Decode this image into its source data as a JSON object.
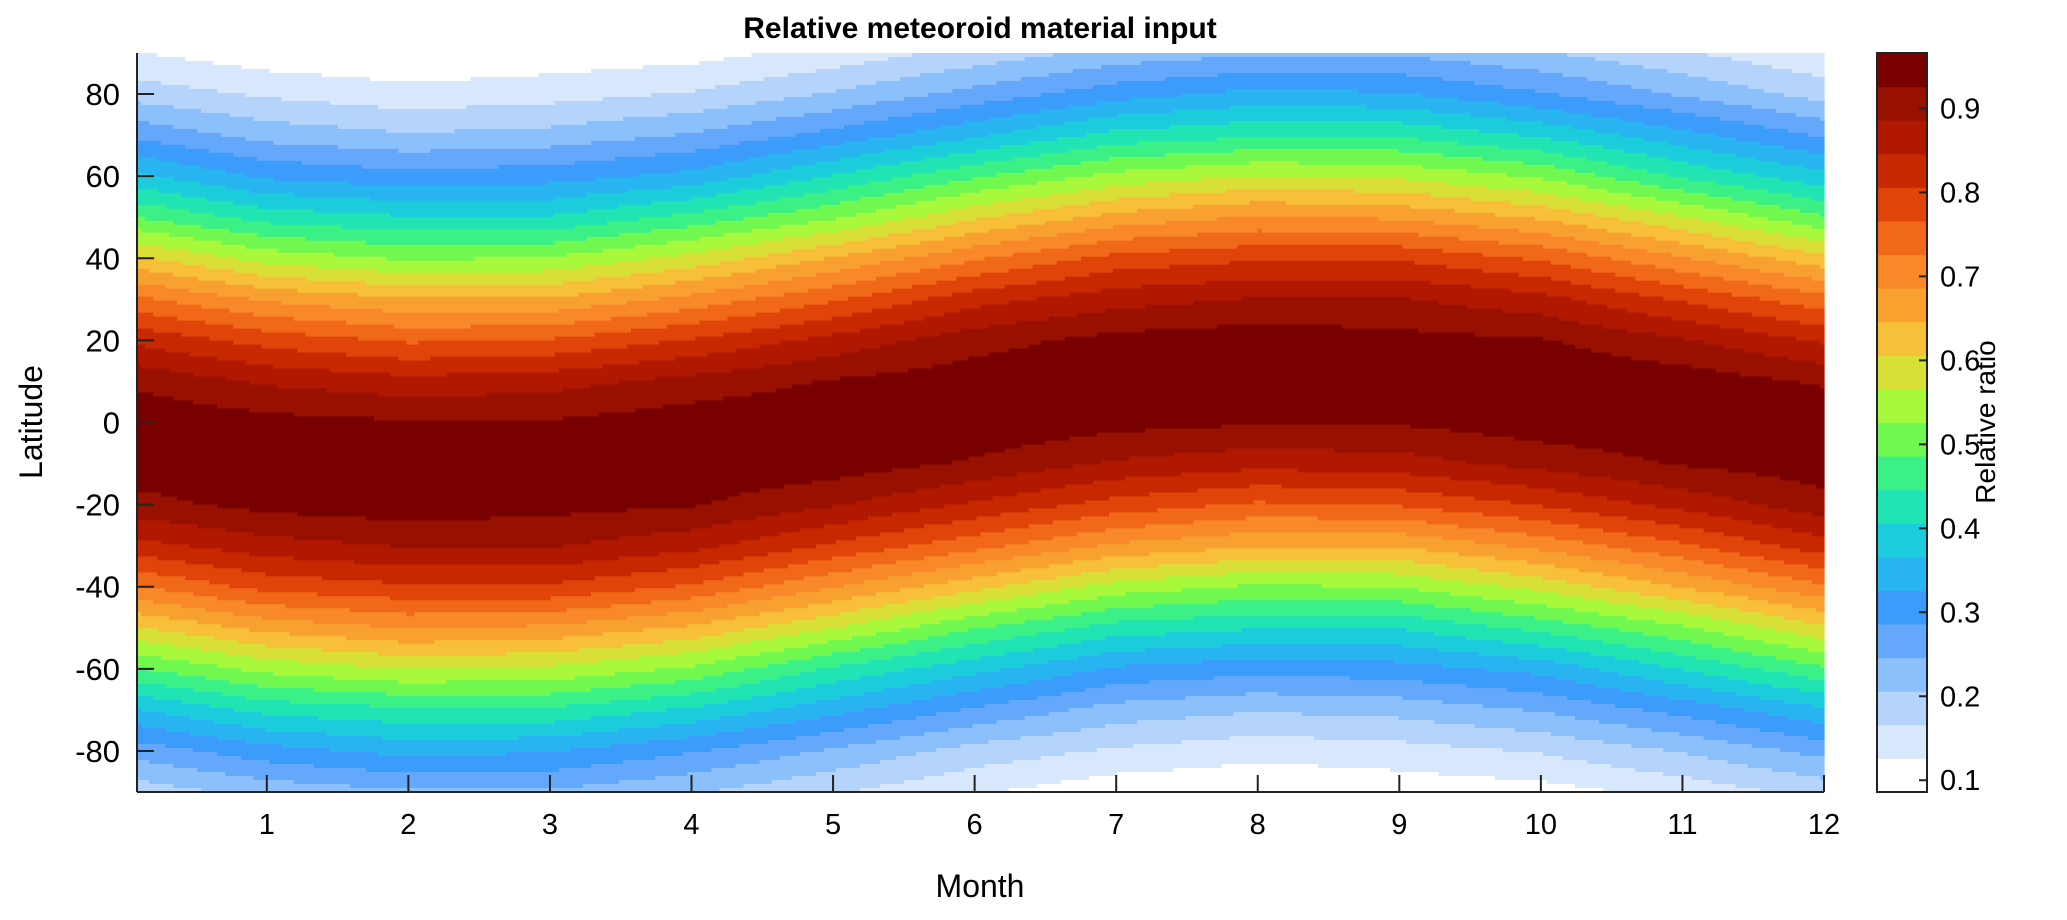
{
  "chart_data": {
    "type": "heatmap",
    "title": "Relative meteoroid material input",
    "xlabel": "Month",
    "ylabel": "Latitude",
    "colorbar_label": "Relative ratio",
    "xlim": [
      0.083,
      12
    ],
    "ylim": [
      -90,
      90
    ],
    "clim": [
      0.086,
      0.966
    ],
    "x_ticks": [
      1,
      2,
      3,
      4,
      5,
      6,
      7,
      8,
      9,
      10,
      11,
      12
    ],
    "y_ticks": [
      -80,
      -60,
      -40,
      -20,
      0,
      20,
      40,
      60,
      80
    ],
    "colorbar_ticks": [
      0.1,
      0.2,
      0.3,
      0.4,
      0.5,
      0.6,
      0.7,
      0.8,
      0.9
    ],
    "grid": false,
    "colormap": [
      "#ffffff",
      "#d8e8fc",
      "#b4d4fc",
      "#8cc0fc",
      "#64a8fc",
      "#3c9cfc",
      "#28b4f0",
      "#1cccdc",
      "#20e4b4",
      "#3cf088",
      "#70f850",
      "#a8f83c",
      "#d8e038",
      "#f8c038",
      "#f8a030",
      "#f88828",
      "#f06818",
      "#e04408",
      "#c82800",
      "#b01800",
      "#981000",
      "#780000"
    ],
    "months": [
      0,
      1,
      2,
      3,
      4,
      5,
      6,
      7,
      8,
      9,
      10,
      11,
      12
    ],
    "latitudes": [
      90,
      80,
      70,
      60,
      50,
      40,
      30,
      20,
      10,
      0,
      -10,
      -20,
      -30,
      -40,
      -50,
      -60,
      -70,
      -80,
      -90
    ],
    "values_by_month": [
      [
        0.13,
        0.19,
        0.28,
        0.38,
        0.49,
        0.62,
        0.74,
        0.84,
        0.92,
        0.96,
        0.95,
        0.91,
        0.83,
        0.72,
        0.6,
        0.48,
        0.36,
        0.26,
        0.18
      ],
      [
        0.1,
        0.16,
        0.23,
        0.32,
        0.43,
        0.55,
        0.68,
        0.79,
        0.88,
        0.94,
        0.96,
        0.94,
        0.87,
        0.78,
        0.66,
        0.54,
        0.42,
        0.31,
        0.22
      ],
      [
        0.09,
        0.14,
        0.21,
        0.3,
        0.41,
        0.52,
        0.65,
        0.76,
        0.86,
        0.93,
        0.96,
        0.95,
        0.89,
        0.8,
        0.69,
        0.57,
        0.44,
        0.34,
        0.24
      ],
      [
        0.1,
        0.15,
        0.22,
        0.31,
        0.41,
        0.53,
        0.65,
        0.77,
        0.87,
        0.93,
        0.96,
        0.94,
        0.89,
        0.8,
        0.68,
        0.56,
        0.44,
        0.33,
        0.24
      ],
      [
        0.11,
        0.17,
        0.25,
        0.34,
        0.46,
        0.58,
        0.7,
        0.81,
        0.9,
        0.95,
        0.96,
        0.93,
        0.86,
        0.76,
        0.64,
        0.52,
        0.4,
        0.29,
        0.21
      ],
      [
        0.14,
        0.21,
        0.3,
        0.41,
        0.52,
        0.65,
        0.76,
        0.86,
        0.93,
        0.96,
        0.95,
        0.89,
        0.8,
        0.69,
        0.57,
        0.44,
        0.34,
        0.24,
        0.17
      ],
      [
        0.18,
        0.26,
        0.36,
        0.48,
        0.6,
        0.72,
        0.83,
        0.91,
        0.95,
        0.96,
        0.92,
        0.84,
        0.74,
        0.62,
        0.49,
        0.38,
        0.28,
        0.19,
        0.13
      ],
      [
        0.22,
        0.31,
        0.42,
        0.54,
        0.66,
        0.78,
        0.87,
        0.94,
        0.96,
        0.94,
        0.88,
        0.79,
        0.68,
        0.55,
        0.43,
        0.32,
        0.23,
        0.16,
        0.1
      ],
      [
        0.24,
        0.34,
        0.44,
        0.57,
        0.69,
        0.8,
        0.89,
        0.95,
        0.96,
        0.93,
        0.86,
        0.76,
        0.65,
        0.52,
        0.41,
        0.3,
        0.21,
        0.14,
        0.09
      ],
      [
        0.24,
        0.33,
        0.44,
        0.56,
        0.68,
        0.8,
        0.89,
        0.94,
        0.96,
        0.93,
        0.87,
        0.77,
        0.65,
        0.53,
        0.41,
        0.31,
        0.22,
        0.15,
        0.1
      ],
      [
        0.21,
        0.29,
        0.4,
        0.52,
        0.64,
        0.76,
        0.86,
        0.93,
        0.96,
        0.95,
        0.9,
        0.81,
        0.7,
        0.58,
        0.46,
        0.34,
        0.25,
        0.17,
        0.11
      ],
      [
        0.17,
        0.24,
        0.34,
        0.44,
        0.57,
        0.69,
        0.8,
        0.89,
        0.95,
        0.96,
        0.93,
        0.86,
        0.76,
        0.65,
        0.52,
        0.41,
        0.3,
        0.21,
        0.14
      ],
      [
        0.13,
        0.19,
        0.28,
        0.38,
        0.49,
        0.62,
        0.74,
        0.84,
        0.92,
        0.96,
        0.95,
        0.91,
        0.83,
        0.72,
        0.6,
        0.48,
        0.36,
        0.26,
        0.18
      ]
    ]
  }
}
